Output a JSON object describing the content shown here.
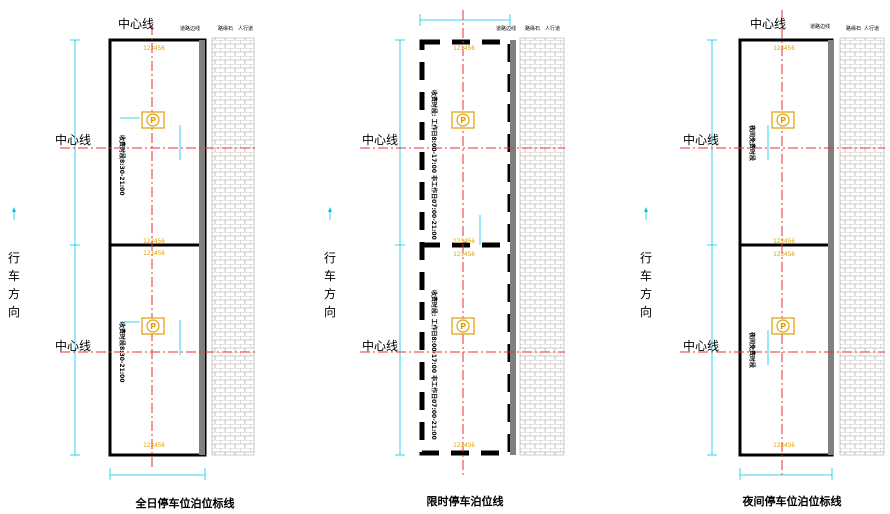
{
  "labels": {
    "center_line": "中心线",
    "road_edge": "道路边线",
    "curb": "路缘石",
    "sidewalk": "人行道",
    "dir_1": "行",
    "dir_2": "车",
    "dir_3": "方",
    "dir_4": "向",
    "plate_top": "123456",
    "plate_bottom": "123456",
    "logo": "P"
  },
  "panels": [
    {
      "caption": "全日停车位泊位标线",
      "time_1": "收费时段8:30-21:00",
      "time_2": "收费时段8:30-21:00"
    },
    {
      "caption": "限时停车泊位线",
      "time_1": "收费时段: 工作日8:00-17:00 非工作日07:00-21:00",
      "time_2": "收费时段: 工作日8:00-17:00 非工作日07:00-21:00"
    },
    {
      "caption": "夜间停车位泊位标线",
      "time_1": "夜间免费时段",
      "time_2": "夜间免费时段"
    }
  ],
  "colors": {
    "center_line": "#e53030",
    "dimension": "#00c8e8",
    "plate": "#e0a000",
    "curb": "#808080"
  }
}
